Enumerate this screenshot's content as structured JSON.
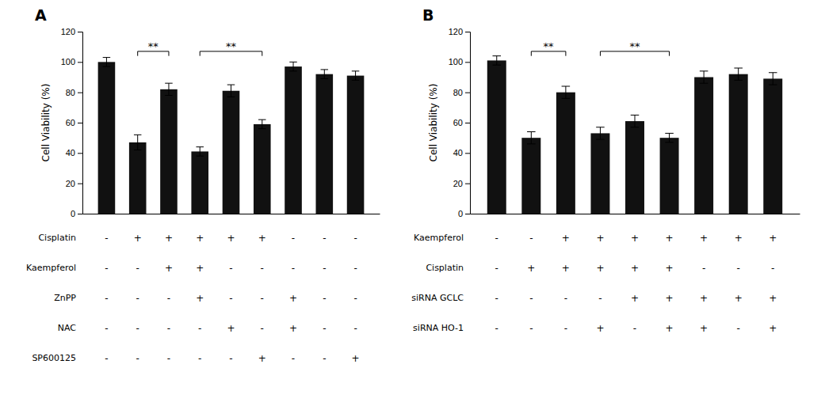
{
  "chart_data": [
    {
      "type": "bar",
      "title": "A",
      "categories": [
        null,
        null,
        null,
        null,
        null,
        null,
        null,
        null,
        null
      ],
      "values": [
        100,
        47,
        82,
        41,
        81,
        59,
        97,
        92,
        91
      ],
      "errors": [
        3,
        5,
        4,
        3,
        4,
        3,
        3,
        3,
        3
      ],
      "color": "#111111",
      "y_label": "Cell Viability (%)",
      "ylim": [
        0,
        120
      ],
      "yticks": [
        0,
        20,
        40,
        60,
        80,
        100,
        120
      ],
      "grid": false,
      "annotations": [
        {
          "label": "**",
          "x1": 1,
          "x2": 2,
          "y": 107
        },
        {
          "label": "**",
          "x1": 3,
          "x2": 5,
          "y": 107
        }
      ],
      "rows": [
        {
          "label": "Cisplatin",
          "entries": [
            "-",
            "+",
            "+",
            "+",
            "+",
            "+",
            "-",
            "-",
            "-"
          ]
        },
        {
          "label": "Kaempferol",
          "entries": [
            "-",
            "-",
            "+",
            "+",
            "-",
            "-",
            "-",
            "-",
            "-"
          ]
        },
        {
          "label": "ZnPP",
          "entries": [
            "-",
            "-",
            "-",
            "+",
            "-",
            "-",
            "+",
            "-",
            "-"
          ]
        },
        {
          "label": "NAC",
          "entries": [
            "-",
            "-",
            "-",
            "-",
            "+",
            "-",
            "+",
            "-",
            "-"
          ]
        },
        {
          "label": "SP600125",
          "entries": [
            "-",
            "-",
            "-",
            "-",
            "-",
            "+",
            "-",
            "-",
            "+"
          ]
        }
      ]
    },
    {
      "type": "bar",
      "title": "B",
      "categories": [
        null,
        null,
        null,
        null,
        null,
        null,
        null,
        null,
        null
      ],
      "values": [
        101,
        50,
        80,
        53,
        61,
        50,
        90,
        92,
        89
      ],
      "errors": [
        3,
        4,
        4,
        4,
        4,
        3,
        4,
        4,
        4
      ],
      "color": "#111111",
      "y_label": "Cell Viability (%)",
      "ylim": [
        0,
        120
      ],
      "yticks": [
        0,
        20,
        40,
        60,
        80,
        100,
        120
      ],
      "grid": false,
      "annotations": [
        {
          "label": "**",
          "x1": 1,
          "x2": 2,
          "y": 107
        },
        {
          "label": "**",
          "x1": 3,
          "x2": 5,
          "y": 107
        }
      ],
      "rows": [
        {
          "label": "Kaempferol",
          "entries": [
            "-",
            "-",
            "+",
            "+",
            "+",
            "+",
            "+",
            "+",
            "+"
          ]
        },
        {
          "label": "Cisplatin",
          "entries": [
            "-",
            "+",
            "+",
            "+",
            "+",
            "+",
            "-",
            "-",
            "-"
          ]
        },
        {
          "label": "siRNA GCLC",
          "entries": [
            "-",
            "-",
            "-",
            "-",
            "+",
            "+",
            "+",
            "+",
            "+"
          ]
        },
        {
          "label": "siRNA HO-1",
          "entries": [
            "-",
            "-",
            "-",
            "+",
            "-",
            "+",
            "+",
            "-",
            "+"
          ]
        }
      ]
    }
  ]
}
